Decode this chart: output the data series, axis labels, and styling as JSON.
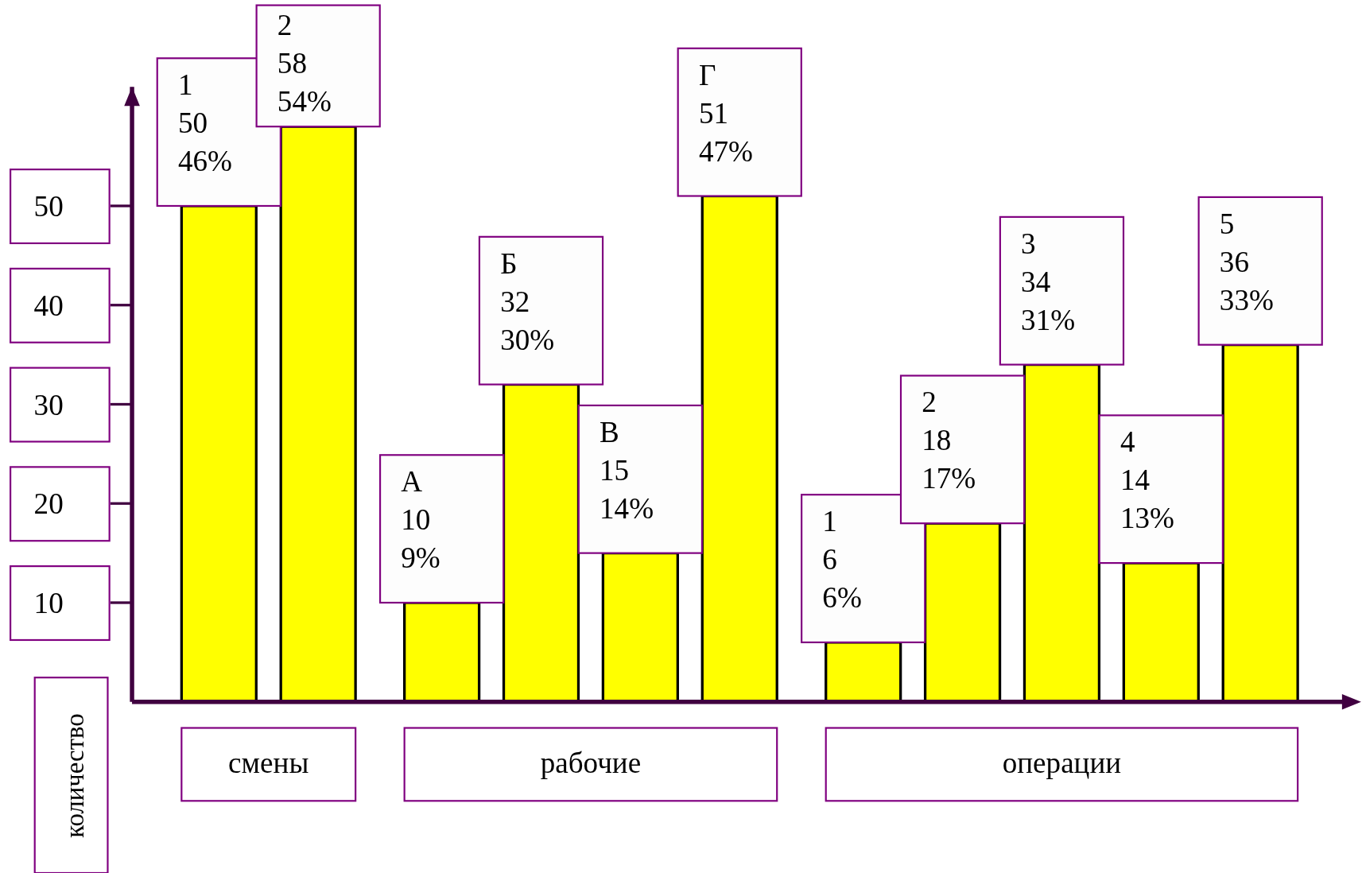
{
  "chart_data": {
    "type": "bar",
    "ylabel": "количество",
    "categories": [
      "1",
      "2",
      "А",
      "Б",
      "В",
      "Г",
      "1",
      "2",
      "3",
      "4",
      "5"
    ],
    "values": [
      50,
      58,
      10,
      32,
      15,
      51,
      6,
      18,
      34,
      14,
      36
    ],
    "value_labels": [
      "50\n46%",
      "58\n54%",
      "10\n9%",
      "32\n30%",
      "15\n14%",
      "51\n47%",
      "6\n6%",
      "18\n17%",
      "34\n31%",
      "14\n13%",
      "36\n33%"
    ],
    "color": "#ffff00",
    "ylim": [
      0,
      62
    ],
    "yticks": [
      10,
      20,
      30,
      40,
      50
    ],
    "annotations": [
      "смены",
      "рабочие",
      "операции"
    ]
  }
}
